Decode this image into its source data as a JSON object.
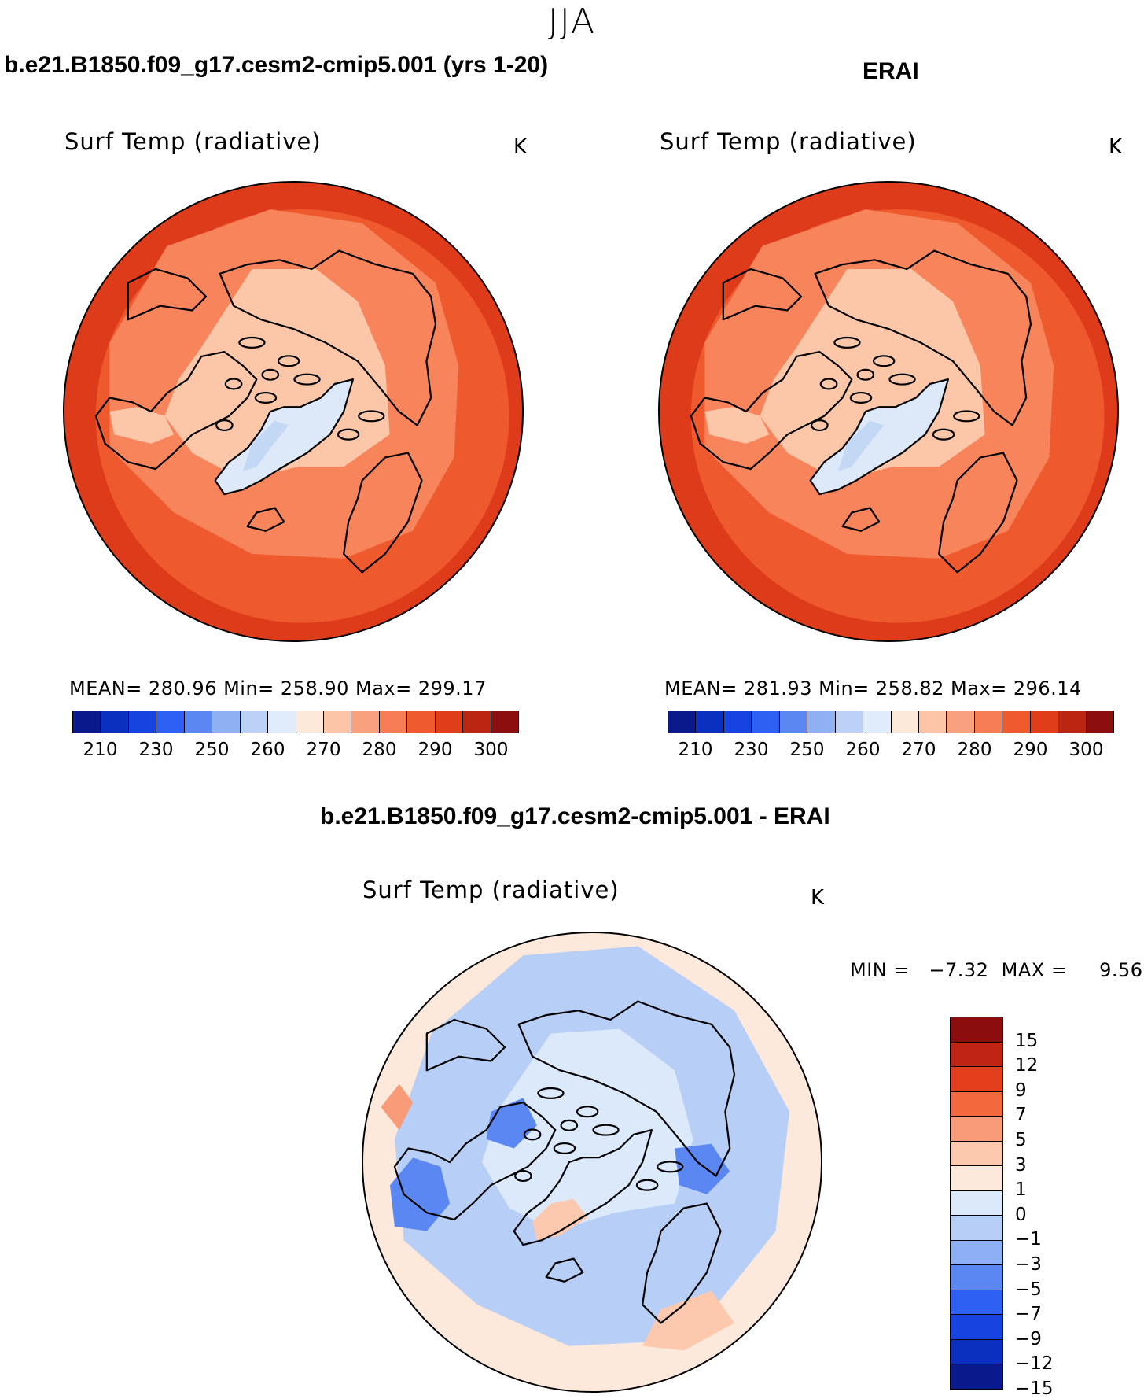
{
  "season": "JJA",
  "panels": [
    {
      "id": "model",
      "title": "b.e21.B1850.f09_g17.cesm2-cmip5.001 (yrs 1-20)",
      "variable": "Surf Temp (radiative)",
      "unit": "K",
      "stats": "MEAN= 280.96   Min= 258.90   Max= 299.17",
      "zones": {
        "pole": "#fcc7a9",
        "mid": "#f7845a",
        "outer": "#ee5a2e",
        "edge": "#dd3b19",
        "ice": "#dde9f8",
        "icecore": "#c2d8f4"
      }
    },
    {
      "id": "obs",
      "title": "ERAI",
      "variable": "Surf Temp (radiative)",
      "unit": "K",
      "stats": "MEAN= 281.93   Min= 258.82   Max= 296.14",
      "zones": {
        "pole": "#fcc7a9",
        "mid": "#f7845a",
        "outer": "#ee5a2e",
        "edge": "#dd3b19",
        "ice": "#dde9f8",
        "icecore": "#c2d8f4"
      }
    }
  ],
  "colorbar": {
    "labels": [
      "210",
      "230",
      "250",
      "260",
      "270",
      "280",
      "290",
      "300"
    ],
    "colors": [
      "#0a1a8c",
      "#0b2fbf",
      "#1744e0",
      "#2f60f4",
      "#5b87f2",
      "#8fb1f3",
      "#bcd1f6",
      "#e0ecfb",
      "#fde9da",
      "#fcc5a8",
      "#f9a07f",
      "#f67d55",
      "#ef5a2e",
      "#e03d1b",
      "#bb2613",
      "#8d0e0e"
    ]
  },
  "diff": {
    "title": "b.e21.B1850.f09_g17.cesm2-cmip5.001 - ERAI",
    "variable": "Surf Temp (radiative)",
    "unit": "K",
    "minmax": "MIN =   −7.32  MAX =     9.56",
    "labels": [
      "15",
      "12",
      "9",
      "7",
      "5",
      "3",
      "1",
      "0",
      "−1",
      "−3",
      "−5",
      "−7",
      "−9",
      "−12",
      "−15"
    ],
    "colors": [
      "#8b0d0d",
      "#c02414",
      "#e33f1c",
      "#f3683d",
      "#f79b79",
      "#fcc9ae",
      "#fde9dc",
      "#dbe9fb",
      "#b7cef6",
      "#8cb0f3",
      "#5b87f2",
      "#2f60f4",
      "#1744e0",
      "#0b2fbf",
      "#0a1a8c"
    ]
  }
}
